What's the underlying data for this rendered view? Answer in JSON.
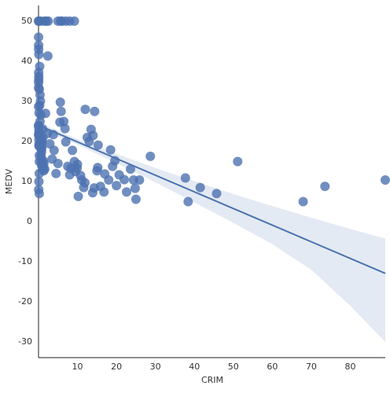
{
  "chart_data": {
    "type": "scatter",
    "x_label": "CRIM",
    "y_label": "MEDV",
    "xlim": [
      0.00632,
      88.9762
    ],
    "ylim": [
      -33.9,
      53.9
    ],
    "xticks": [
      10,
      20,
      30,
      40,
      50,
      60,
      70,
      80
    ],
    "yticks": [
      -30,
      -20,
      -10,
      0,
      10,
      20,
      30,
      40,
      50
    ],
    "grid": false,
    "series": [
      {
        "color": "#4c72b0",
        "x": [
          0.02,
          0.03,
          0.03,
          0.03,
          0.07,
          0.03,
          0.09,
          0.14,
          0.21,
          0.17,
          0.22,
          0.12,
          0.09,
          0.63,
          0.64,
          0.63,
          1.05,
          0.78,
          0.8,
          0.73,
          1.25,
          0.85,
          1.23,
          0.99,
          0.75,
          0.84,
          0.67,
          0.75,
          0.84,
          1.13,
          1.35,
          1.39,
          1.15,
          1.61,
          0.06,
          0.05,
          0.01,
          0.5,
          1.5,
          2.0,
          0.02,
          0.03,
          0.04,
          0.1,
          0.3,
          0.05,
          0.2,
          0.4,
          0.5,
          0.3,
          0.6,
          0.4,
          0.02,
          0.08,
          0.1,
          0.15,
          0.2,
          0.1,
          0.05,
          0.2,
          2.5,
          2.4,
          1.8,
          2.3,
          2.9,
          3.5,
          3.8,
          4.0,
          4.5,
          5.0,
          5.5,
          5.8,
          5.6,
          6.5,
          6.8,
          7.0,
          7.5,
          8.0,
          8.3,
          8.7,
          9.2,
          9.5,
          9.9,
          10.0,
          10.2,
          10.8,
          11.1,
          11.9,
          11.6,
          12.0,
          12.5,
          13.0,
          13.5,
          14.0,
          14.4,
          14.3,
          13.9,
          15.0,
          15.2,
          15.3,
          15.9,
          16.8,
          17.0,
          18.0,
          18.5,
          19.0,
          19.6,
          20.0,
          20.7,
          22.0,
          22.6,
          23.6,
          24.4,
          24.8,
          25.0,
          25.9,
          28.7,
          37.7,
          38.4,
          41.5,
          45.7,
          51.1,
          67.9,
          73.5,
          88.98,
          5,
          6,
          7,
          8,
          9.2,
          5.7
        ],
        "values": [
          24,
          21.6,
          34.7,
          33.4,
          36.2,
          28.7,
          22.9,
          27.1,
          16.5,
          18.9,
          15,
          18.9,
          21.7,
          20.4,
          18.2,
          19.9,
          23.1,
          17.5,
          20.2,
          18.2,
          13.6,
          19.6,
          15.2,
          14.5,
          15.6,
          13.9,
          16.6,
          14.8,
          18.4,
          21,
          12.7,
          14.5,
          13.2,
          13.1,
          35.4,
          50,
          50,
          50,
          50,
          50,
          46,
          44,
          43,
          41.7,
          38.7,
          37.2,
          33,
          31.6,
          30.1,
          29,
          26.6,
          25,
          23.9,
          22,
          20.5,
          19.4,
          12,
          10,
          8,
          7,
          50,
          41.3,
          27,
          22,
          19.4,
          15.6,
          21.7,
          17.8,
          12,
          14.5,
          24.8,
          27.5,
          29.8,
          25,
          23.2,
          19.9,
          13.8,
          11.7,
          13.3,
          17.8,
          15,
          12.5,
          13.3,
          14.3,
          6.3,
          11.5,
          10.4,
          9.7,
          8.5,
          28,
          21,
          20,
          23,
          21.5,
          27.5,
          8.4,
          7.2,
          12.7,
          13.5,
          19.1,
          8.8,
          7.4,
          11.9,
          10.4,
          17.9,
          13.8,
          15.2,
          9.0,
          11.7,
          10.5,
          7.4,
          13.1,
          10.4,
          8.3,
          5.6,
          10.4,
          16.3,
          10.9,
          5.0,
          8.5,
          7.0,
          15.0,
          5.0,
          8.8,
          10.4,
          50,
          50,
          50,
          50,
          50,
          50
        ]
      }
    ],
    "regression": {
      "color": "#4c72b0",
      "x": [
        0.00632,
        10,
        20,
        30,
        40,
        50,
        60,
        70,
        80,
        88.9762
      ],
      "values": [
        24.03,
        19.88,
        15.73,
        11.58,
        7.43,
        3.28,
        -0.87,
        -5.02,
        -9.17,
        -12.9
      ],
      "lower": [
        23.2,
        19.2,
        14.6,
        9.8,
        4.8,
        -0.3,
        -5.6,
        -12.0,
        -21.0,
        -30.0
      ],
      "upper": [
        24.8,
        20.6,
        16.9,
        13.4,
        10.1,
        6.9,
        3.9,
        1.0,
        -1.8,
        -4.2
      ]
    }
  }
}
